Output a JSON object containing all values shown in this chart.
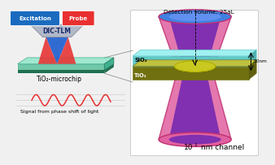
{
  "bg_color": "#f0f0f0",
  "left_panel": {
    "excitation_label": "Excitation",
    "excitation_color": "#1a6bbf",
    "probe_label": "Probe",
    "probe_color": "#e83030",
    "dic_tlm_label": "DIC-TLM",
    "chip_label": "TiO₂-microchip",
    "signal_label": "Signal from phase shift of light",
    "chip_top_color": "#a0e8d0",
    "chip_front_color": "#70c8a8",
    "chip_side_color": "#40b090",
    "chip_edge_color": "#207050"
  },
  "right_panel": {
    "detection_label": "Detection volume: 25aL",
    "sio2_label": "SiO₂",
    "tio2_label": "TiO₂",
    "nm_label": "50nm",
    "channel_main": "10",
    "channel_sup": "1",
    "channel_end": " nm channel",
    "outer_color": "#e060a0",
    "outer_edge": "#c03070",
    "inner_color": "#8030b0",
    "top_fill": "#4080e0",
    "bot_fill": "#e060a0",
    "nc_color": "#e8e840",
    "nc_edge": "#b0b000",
    "sio2_top": "#80e8e8",
    "sio2_front": "#60c8c8",
    "sio2_side": "#a0d0c0",
    "tio2_top": "#a8a830",
    "tio2_front": "#707010",
    "tio2_side": "#606010"
  }
}
